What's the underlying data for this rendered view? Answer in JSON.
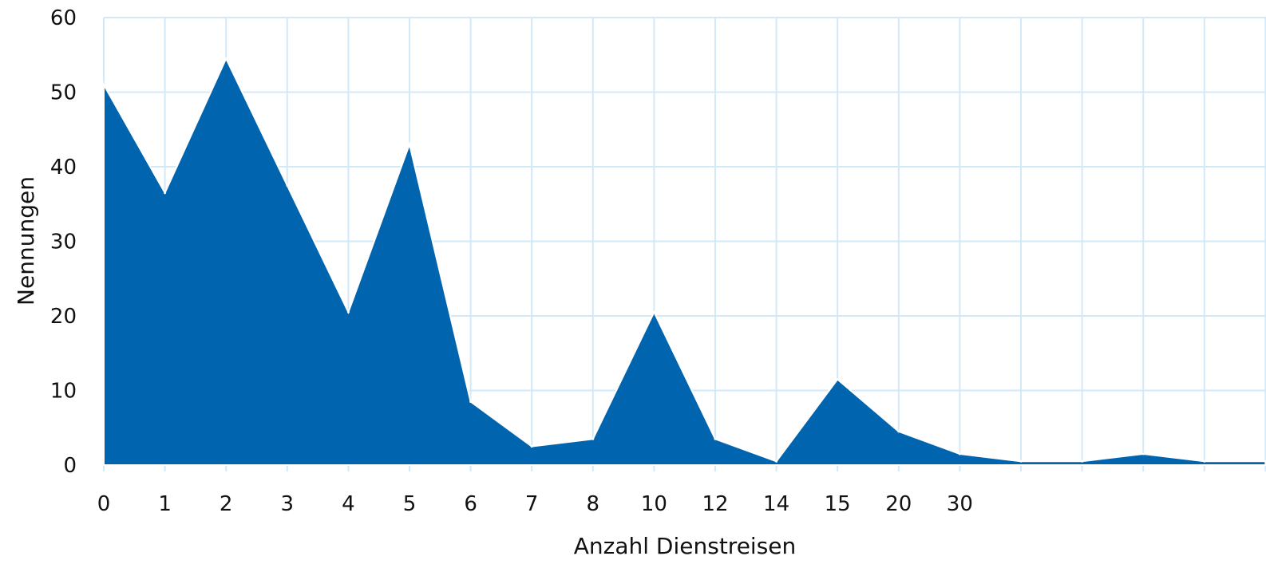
{
  "chart_data": {
    "type": "area",
    "title": "",
    "xlabel": "Anzahl Dienstreisen",
    "ylabel": "Nennungen",
    "categories": [
      "0",
      "1",
      "2",
      "3",
      "4",
      "5",
      "6",
      "7",
      "8",
      "10",
      "12",
      "14",
      "15",
      "20",
      "30",
      "",
      "",
      "",
      "",
      ""
    ],
    "series": [
      {
        "values": [
          51,
          36.5,
          54.5,
          37.5,
          20.5,
          43,
          8.5,
          2.5,
          3.5,
          20.5,
          3.5,
          0.5,
          11.5,
          4.5,
          1.5,
          0.5,
          0.5,
          1.5,
          0.5,
          0.5
        ]
      }
    ],
    "ylim": [
      0,
      60
    ],
    "yticks": [
      "0",
      "10",
      "20",
      "30",
      "40",
      "50",
      "60"
    ],
    "grid": true,
    "legend": "none",
    "colors": {
      "fill": "#0064AF",
      "grid": "#D3E9F8",
      "edge": "#FFFFFF"
    }
  }
}
